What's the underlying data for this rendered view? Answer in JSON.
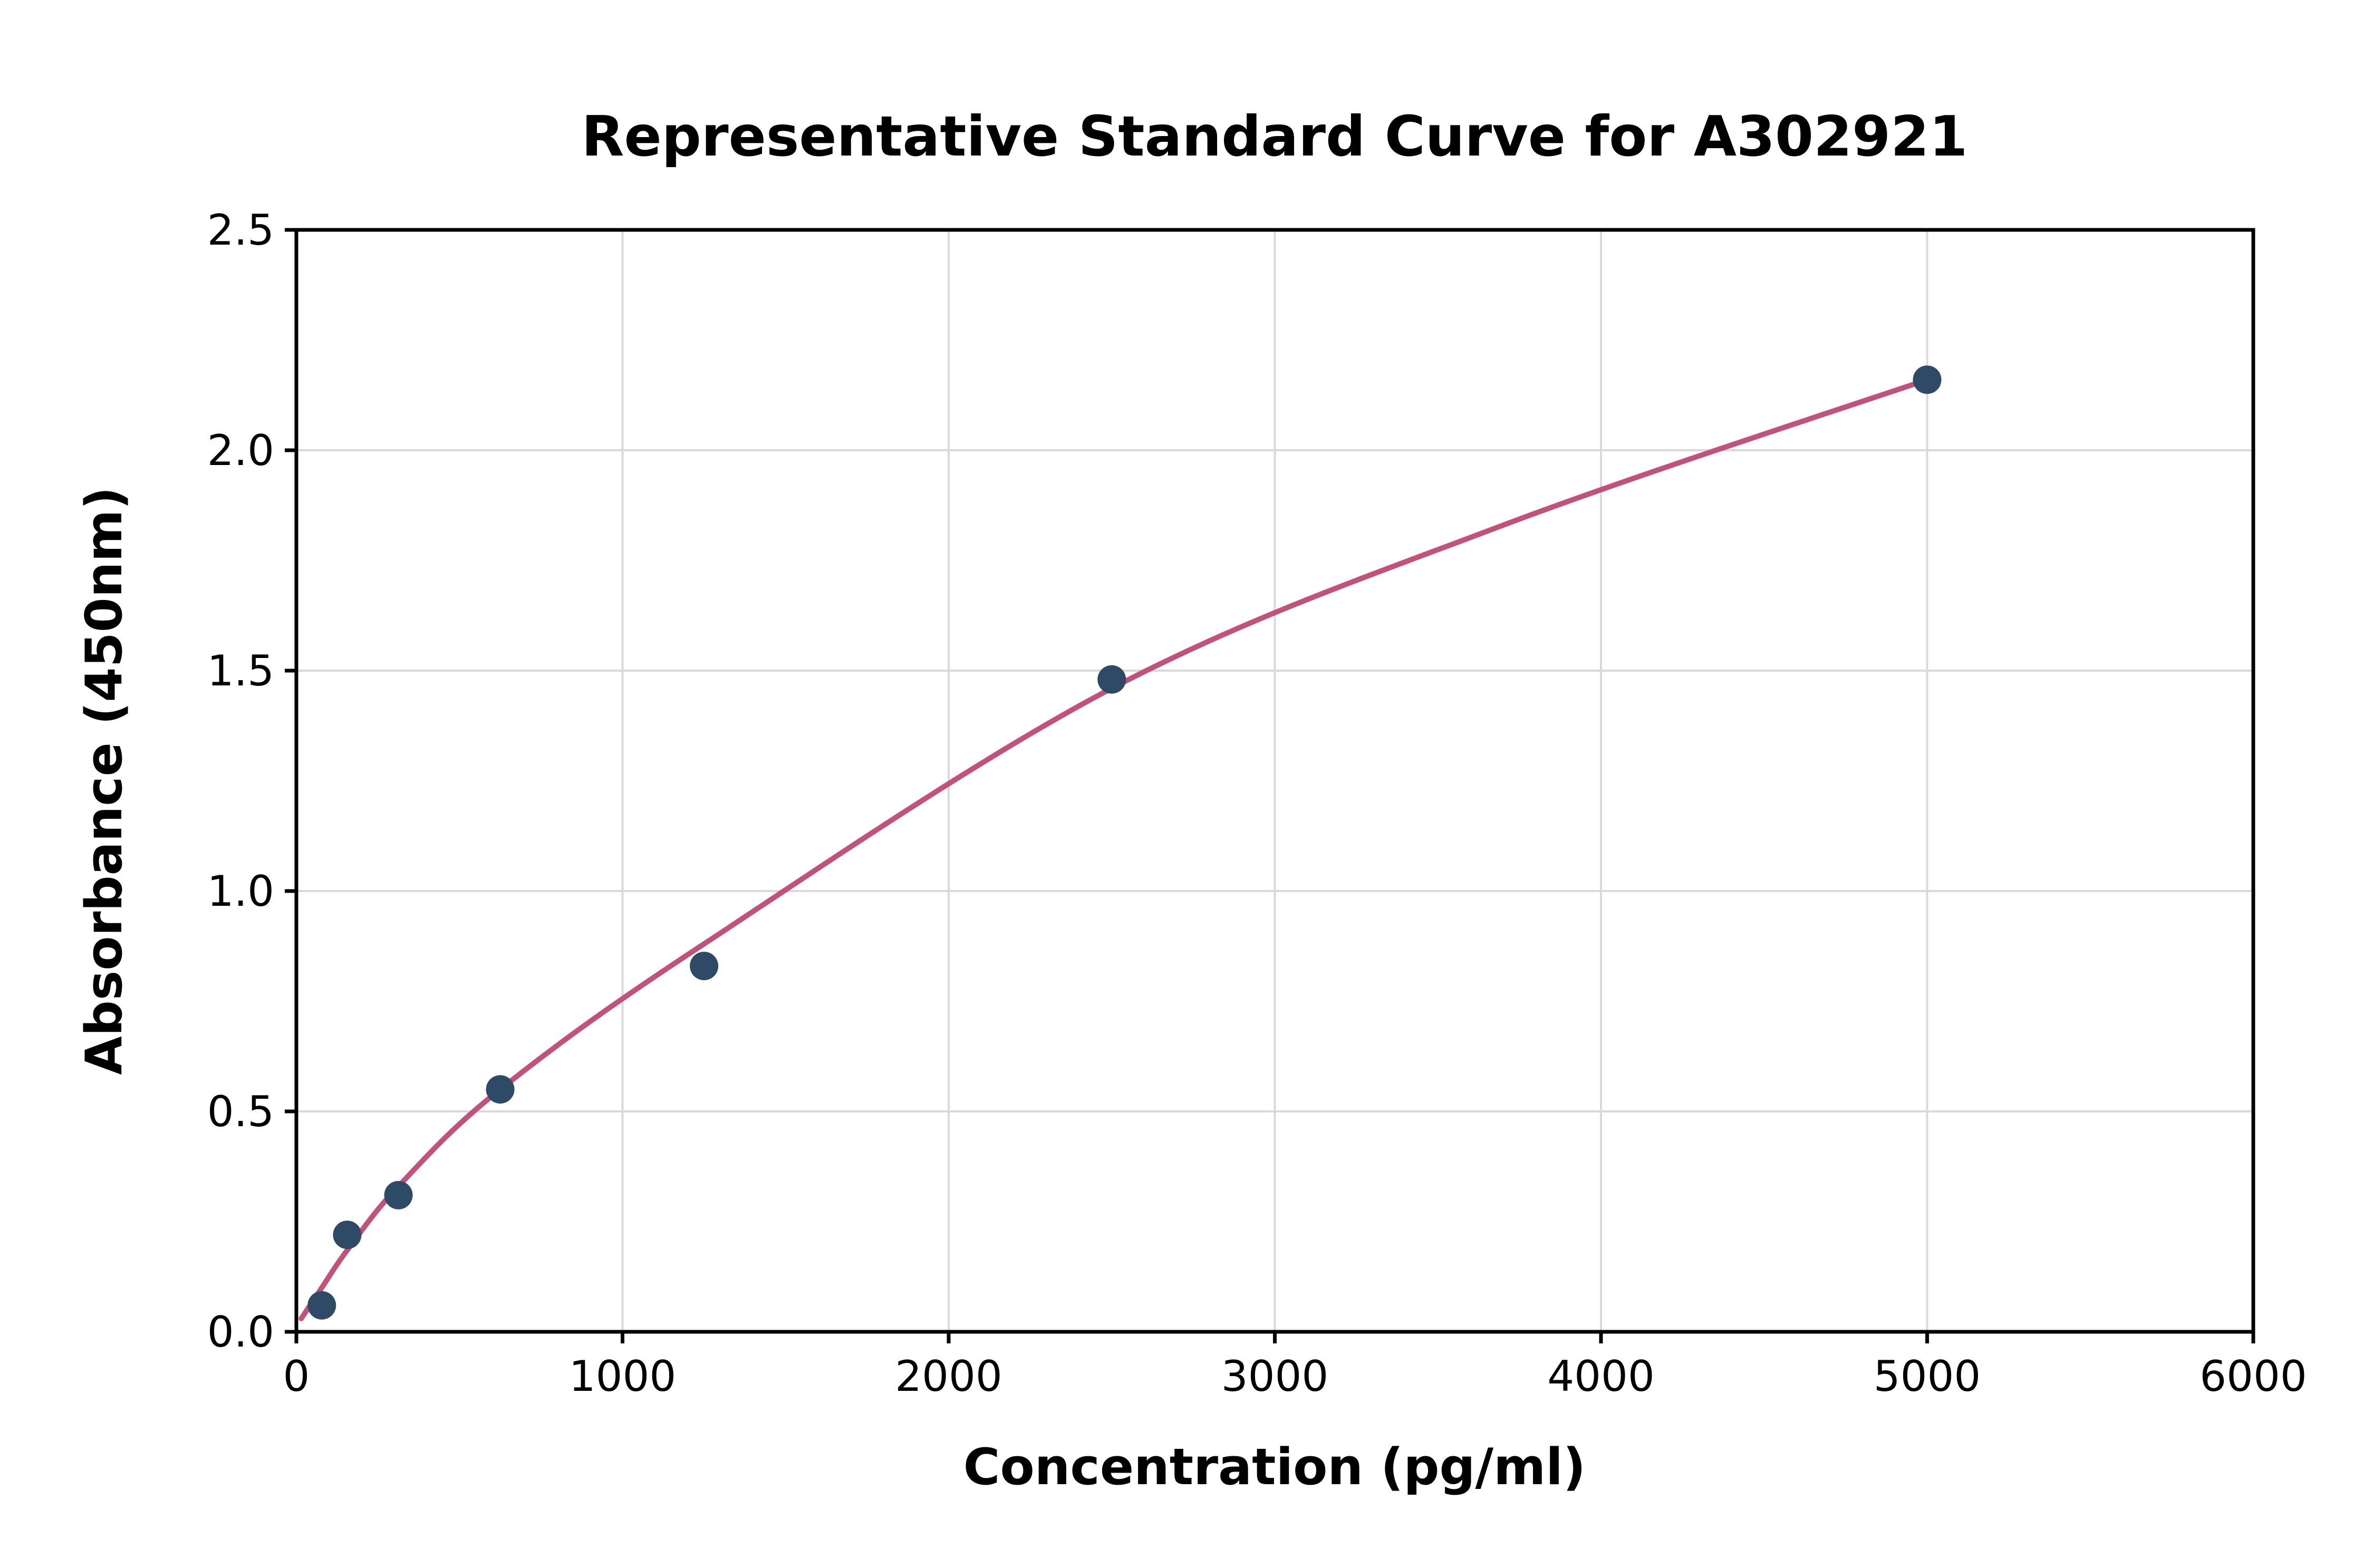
{
  "chart_data": {
    "type": "scatter",
    "title": "Representative Standard Curve for A302921",
    "xlabel": "Concentration (pg/ml)",
    "ylabel": "Absorbance (450nm)",
    "xlim": [
      0,
      6000
    ],
    "ylim": [
      0,
      2.5
    ],
    "grid": true,
    "legend": "none",
    "x_ticks": [
      0,
      1000,
      2000,
      3000,
      4000,
      5000,
      6000
    ],
    "x_tick_labels": [
      "0",
      "1000",
      "2000",
      "3000",
      "4000",
      "5000",
      "6000"
    ],
    "y_ticks": [
      0.0,
      0.5,
      1.0,
      1.5,
      2.0,
      2.5
    ],
    "y_tick_labels": [
      "0.0",
      "0.5",
      "1.0",
      "1.5",
      "2.0",
      "2.5"
    ],
    "points": [
      {
        "x": 78,
        "y": 0.06
      },
      {
        "x": 156,
        "y": 0.22
      },
      {
        "x": 313,
        "y": 0.31
      },
      {
        "x": 625,
        "y": 0.55
      },
      {
        "x": 1250,
        "y": 0.83
      },
      {
        "x": 2500,
        "y": 1.48
      },
      {
        "x": 5000,
        "y": 2.16
      }
    ],
    "curve_points": [
      [
        15,
        0.03
      ],
      [
        78,
        0.1
      ],
      [
        156,
        0.185
      ],
      [
        313,
        0.33
      ],
      [
        625,
        0.55
      ],
      [
        1250,
        0.88
      ],
      [
        2500,
        1.46
      ],
      [
        3700,
        1.83
      ],
      [
        5000,
        2.16
      ]
    ],
    "colors": {
      "point": "#2e4a66",
      "curve": "#c0527c",
      "grid": "#d9d9d9",
      "axis": "#000000",
      "background": "#ffffff"
    }
  }
}
